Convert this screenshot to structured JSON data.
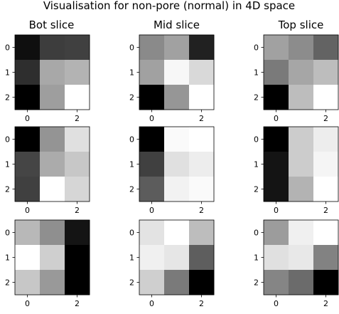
{
  "chart_data": {
    "type": "heatmap",
    "title": "Visualisation for non-pore (normal) in 4D space",
    "column_titles": [
      "Bot slice",
      "Mid slice",
      "Top slice"
    ],
    "colormap": "gray",
    "value_range": [
      0,
      1
    ],
    "x_tick_labels": [
      "0",
      "2"
    ],
    "y_tick_labels": [
      "0",
      "1",
      "2"
    ],
    "panels": [
      [
        {
          "values": [
            [
              0.06,
              0.24,
              0.25
            ],
            [
              0.18,
              0.66,
              0.7
            ],
            [
              0.0,
              0.62,
              1.0
            ]
          ]
        },
        {
          "values": [
            [
              0.54,
              0.63,
              0.13
            ],
            [
              0.63,
              0.97,
              0.85
            ],
            [
              0.0,
              0.59,
              1.0
            ]
          ]
        },
        {
          "values": [
            [
              0.63,
              0.55,
              0.39
            ],
            [
              0.48,
              0.65,
              0.74
            ],
            [
              0.0,
              0.74,
              1.0
            ]
          ]
        }
      ],
      [
        {
          "values": [
            [
              0.0,
              0.58,
              0.88
            ],
            [
              0.27,
              0.67,
              0.78
            ],
            [
              0.25,
              1.0,
              0.84
            ]
          ]
        },
        {
          "values": [
            [
              0.0,
              0.98,
              1.0
            ],
            [
              0.25,
              0.88,
              0.93
            ],
            [
              0.36,
              0.95,
              0.98
            ]
          ]
        },
        {
          "values": [
            [
              0.0,
              0.8,
              0.93
            ],
            [
              0.08,
              0.8,
              0.96
            ],
            [
              0.08,
              0.7,
              1.0
            ]
          ]
        }
      ],
      [
        {
          "values": [
            [
              0.72,
              0.56,
              0.08
            ],
            [
              1.0,
              0.81,
              0.0
            ],
            [
              0.78,
              0.6,
              0.0
            ]
          ]
        },
        {
          "values": [
            [
              0.89,
              1.0,
              0.74
            ],
            [
              0.94,
              0.9,
              0.37
            ],
            [
              0.81,
              0.48,
              0.0
            ]
          ]
        },
        {
          "values": [
            [
              0.61,
              0.94,
              1.0
            ],
            [
              0.88,
              0.91,
              0.51
            ],
            [
              0.52,
              0.42,
              0.0
            ]
          ]
        }
      ]
    ]
  }
}
